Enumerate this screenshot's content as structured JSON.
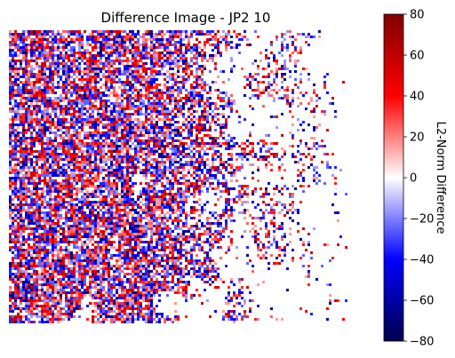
{
  "chart_data": {
    "type": "heatmap",
    "title": "Difference Image - JP2 10",
    "axes_visible": false,
    "colormap": "seismic",
    "colormap_stops": [
      "#00004c",
      "#0000ff",
      "#ffffff",
      "#ff0000",
      "#800000"
    ],
    "colorbar": {
      "label": "L2-Norm Difference",
      "range": [
        -80,
        80
      ],
      "ticks": [
        80,
        60,
        40,
        20,
        0,
        -20,
        -40,
        -60,
        -80
      ],
      "position": "right"
    },
    "description_values": {
      "dense_noise_region": "left",
      "sparse_region": "right"
    }
  }
}
